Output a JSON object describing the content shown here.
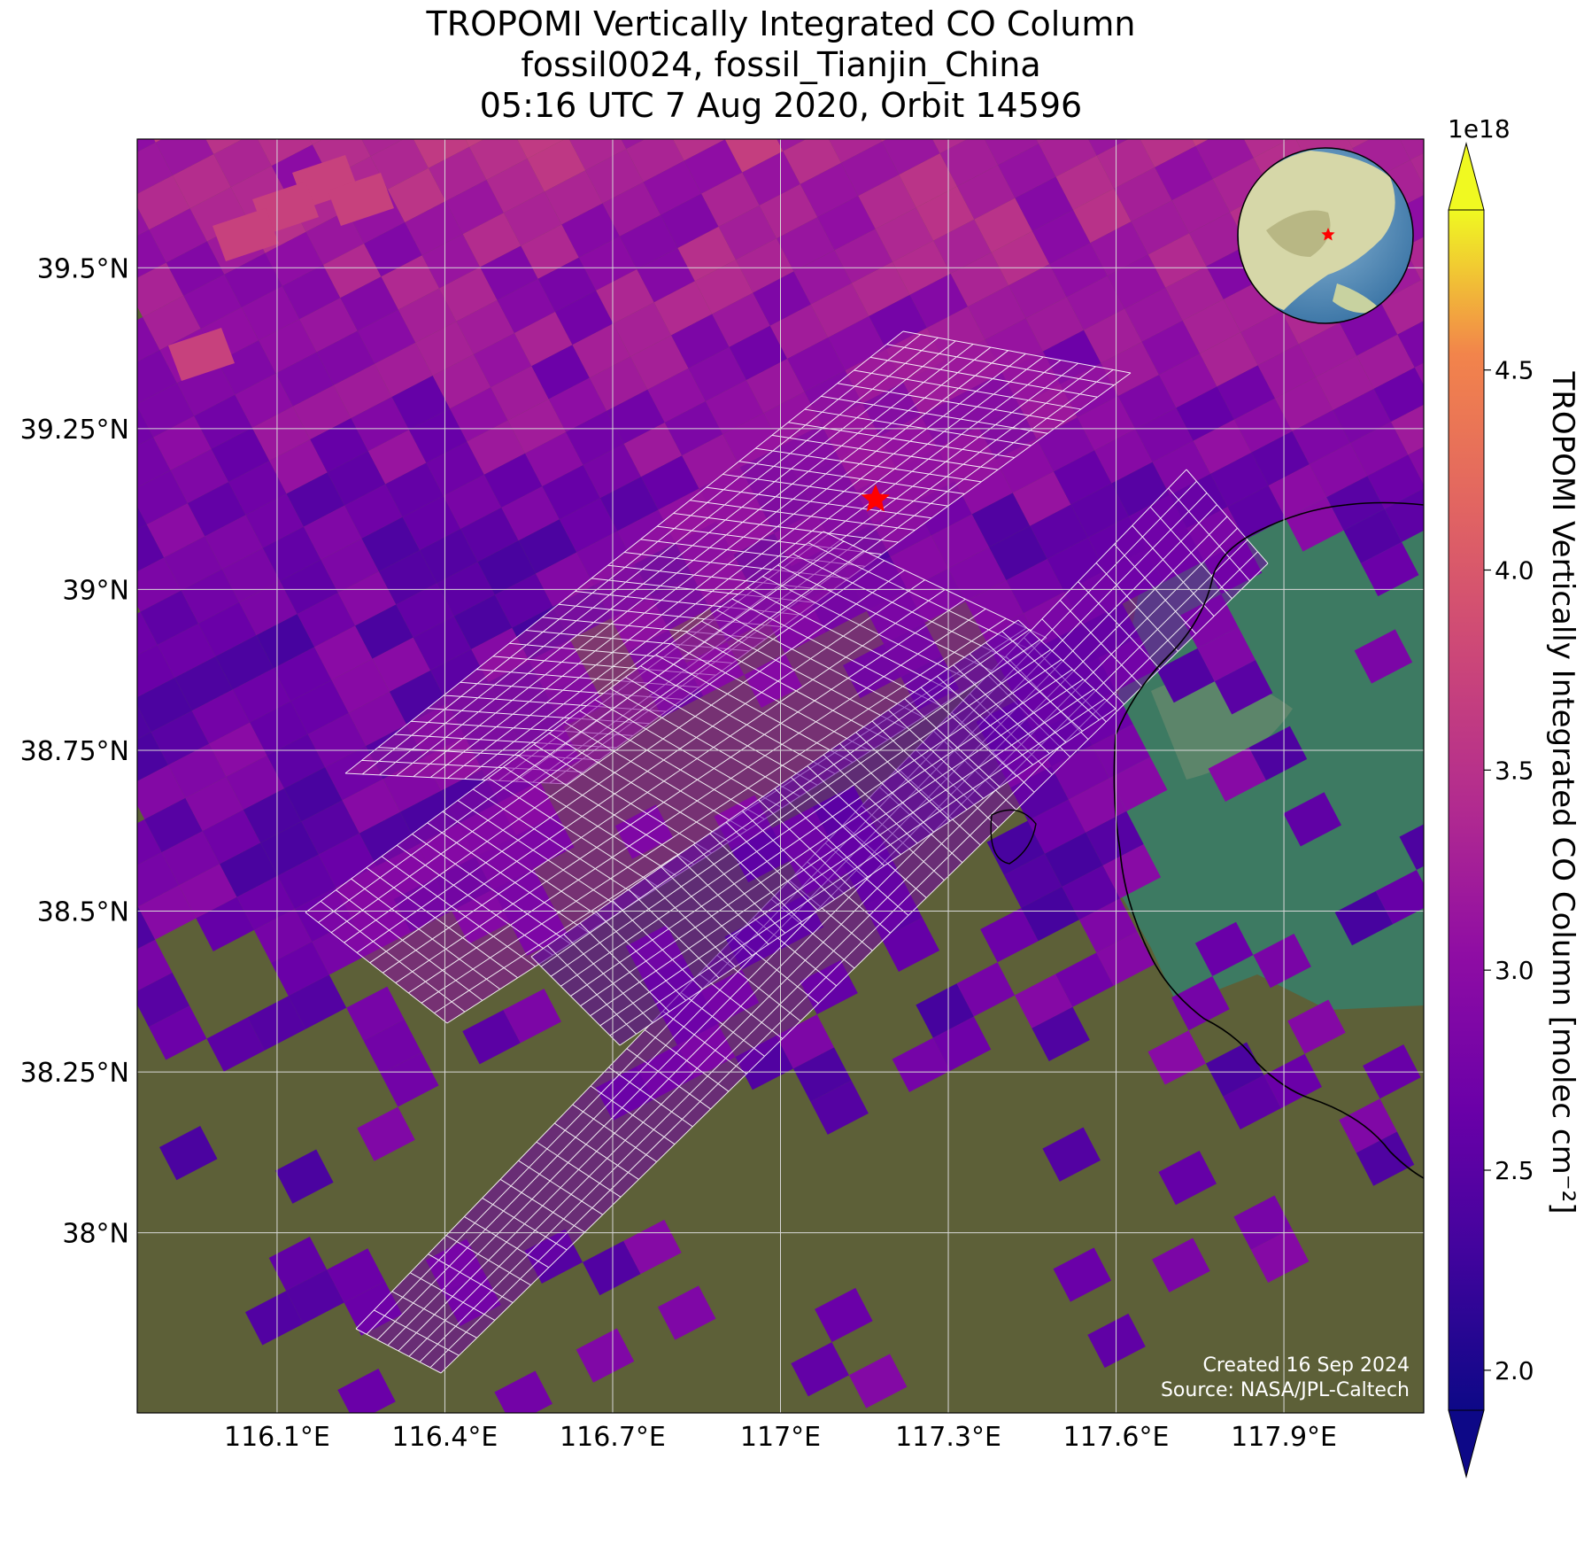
{
  "title": {
    "line1": "TROPOMI Vertically Integrated CO Column",
    "line2": "fossil0024, fossil_Tianjin_China",
    "line3": "05:16 UTC 7 Aug 2020, Orbit 14596"
  },
  "axes": {
    "lat_ticks": [
      "39.5°N",
      "39.25°N",
      "39°N",
      "38.75°N",
      "38.5°N",
      "38.25°N",
      "38°N"
    ],
    "lon_ticks": [
      "116.1°E",
      "116.4°E",
      "116.7°E",
      "117°E",
      "117.3°E",
      "117.6°E",
      "117.9°E"
    ]
  },
  "colorbar": {
    "label": "TROPOMI Vertically Integrated CO Column [molec cm⁻²]",
    "exponent": "1e18",
    "ticks": [
      "2.0",
      "2.5",
      "3.0",
      "3.5",
      "4.0",
      "4.5"
    ],
    "range": [
      1.9,
      4.9
    ],
    "colormap": "plasma"
  },
  "credits": {
    "created": "Created 16 Sep 2024",
    "source": "Source: NASA/JPL-Caltech"
  },
  "target_marker": {
    "symbol": "red-star",
    "color": "#ff0000"
  },
  "map": {
    "extent_lon": [
      115.85,
      118.15
    ],
    "extent_lat": [
      37.72,
      39.7
    ],
    "target": {
      "lon": 117.17,
      "lat": 39.14
    },
    "colors": {
      "land": "#5d6038",
      "sea": "#3d7a62",
      "grid": "#d8d8d8",
      "coastline": "#000000"
    }
  }
}
